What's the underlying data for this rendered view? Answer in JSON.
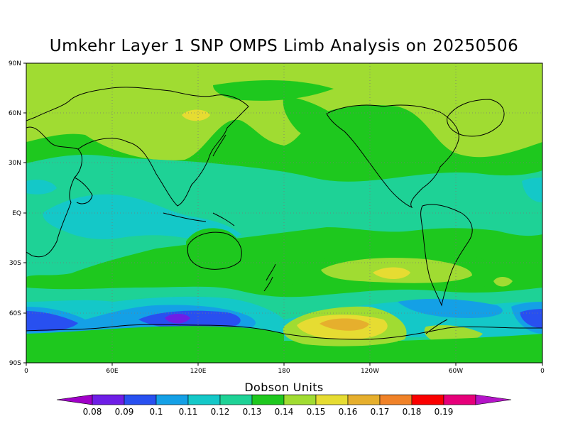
{
  "title": "Umkehr Layer 1 SNP OMPS Limb Analysis on 20250506",
  "lat_labels": [
    "90N",
    "60N",
    "30N",
    "EQ",
    "30S",
    "60S",
    "90S"
  ],
  "lon_labels": [
    "0",
    "60E",
    "120E",
    "180",
    "120W",
    "60W",
    "0"
  ],
  "colorbar": {
    "title": "Dobson Units",
    "levels": [
      "0.08",
      "0.09",
      "0.1",
      "0.11",
      "0.12",
      "0.13",
      "0.14",
      "0.15",
      "0.16",
      "0.17",
      "0.18",
      "0.19"
    ],
    "colors": [
      "#a000c8",
      "#6e1ee6",
      "#2850f0",
      "#14a0e6",
      "#14c8c8",
      "#1ed296",
      "#1ec81e",
      "#a0dc32",
      "#e6dc32",
      "#e6af2d",
      "#f08228",
      "#fa0000",
      "#e6007a",
      "#b414c8"
    ]
  },
  "map_colors": {
    "ocean_base": "#1ed296",
    "land_line": "#000000"
  }
}
